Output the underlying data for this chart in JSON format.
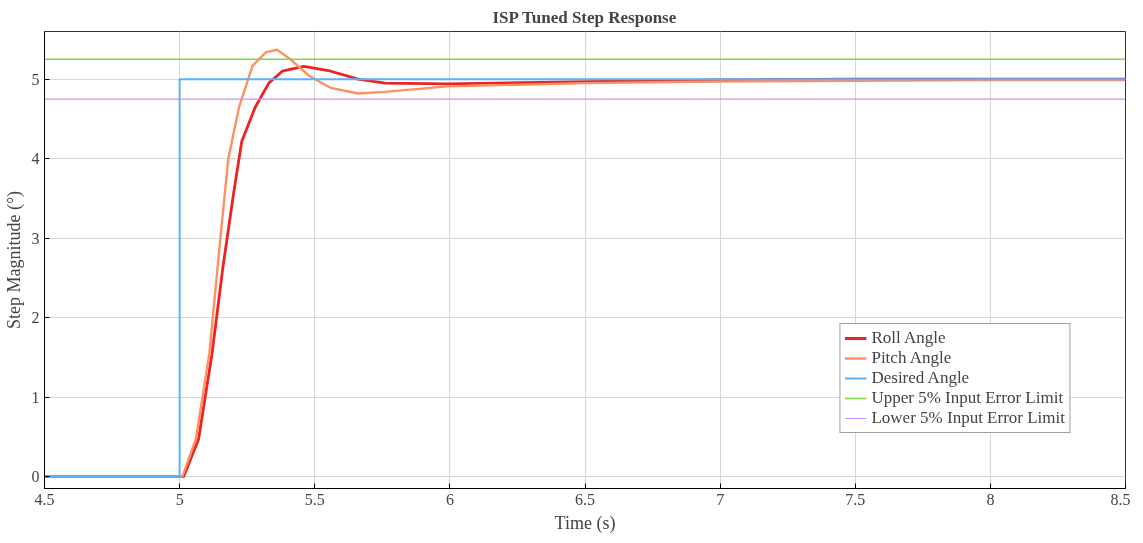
{
  "chart_data": {
    "type": "line",
    "title": "ISP Tuned Step Response",
    "xlabel": "Time (s)",
    "ylabel": "Step Magnitude (°)",
    "xlim": [
      4.5,
      8.5
    ],
    "xticks": [
      4.5,
      5,
      5.5,
      6,
      6.5,
      7,
      7.5,
      8,
      8.5
    ],
    "ylim": [
      -0.15,
      5.6
    ],
    "yticks": [
      0,
      1,
      2,
      3,
      4,
      5
    ],
    "grid": true,
    "legend": "bottom right",
    "series": [
      {
        "name": "Roll Angle",
        "color": "#ee2222",
        "x": [
          4.5,
          5.015,
          5.07,
          5.12,
          5.16,
          5.2,
          5.23,
          5.28,
          5.33,
          5.38,
          5.46,
          5.56,
          5.66,
          5.76,
          5.99,
          6.5,
          7,
          7.5,
          8,
          8.5
        ],
        "values": [
          0,
          0,
          0.47,
          1.55,
          2.63,
          3.57,
          4.22,
          4.65,
          4.95,
          5.1,
          5.16,
          5.1,
          5.0,
          4.95,
          4.94,
          4.97,
          4.99,
          5.0,
          5.0,
          5.0
        ]
      },
      {
        "name": "Pitch Angle",
        "color": "#ff9060",
        "x": [
          4.5,
          5.01,
          5.06,
          5.11,
          5.15,
          5.18,
          5.22,
          5.27,
          5.32,
          5.36,
          5.41,
          5.48,
          5.56,
          5.66,
          5.76,
          5.99,
          6.5,
          7,
          7.5,
          8,
          8.5
        ],
        "values": [
          0,
          0,
          0.47,
          1.55,
          2.97,
          4.0,
          4.65,
          5.17,
          5.34,
          5.37,
          5.25,
          5.04,
          4.89,
          4.82,
          4.84,
          4.91,
          4.95,
          4.97,
          4.98,
          4.99,
          4.99
        ]
      },
      {
        "name": "Desired Angle",
        "color": "#55b4ff",
        "x": [
          4.5,
          5,
          5,
          8.5
        ],
        "values": [
          0,
          0,
          5,
          5
        ]
      },
      {
        "name": "Upper 5% Input Error Limit",
        "color": "#80d840",
        "x": [
          4.5,
          8.5
        ],
        "values": [
          5.25,
          5.25
        ]
      },
      {
        "name": "Lower 5% Input Error Limit",
        "color": "#c890ff",
        "x": [
          4.5,
          8.5
        ],
        "values": [
          4.75,
          4.75
        ]
      }
    ]
  }
}
